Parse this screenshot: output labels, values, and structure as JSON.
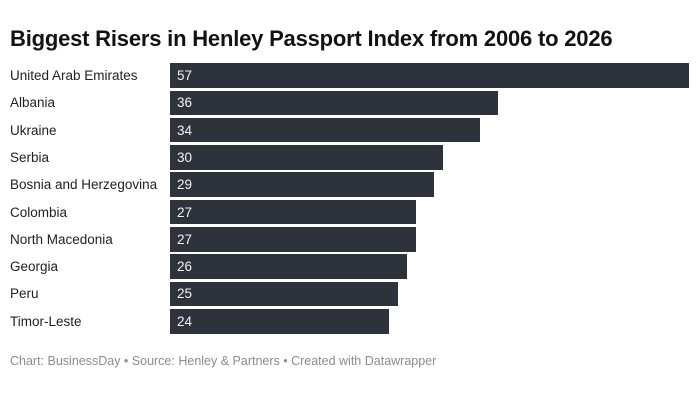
{
  "title": "Biggest Risers in Henley Passport Index from 2006 to 2026",
  "footer": {
    "credit": "Chart: BusinessDay • Source: Henley & Partners • Created with Datawrapper"
  },
  "colors": {
    "background": "#ffffff",
    "bar": "#2e333b",
    "title_text": "#121212",
    "category_label": "#1f1f1f",
    "value_label": "#f2f2f2",
    "footer_text": "#8c8c8c"
  },
  "chart_data": {
    "type": "bar",
    "orientation": "horizontal",
    "title": "Biggest Risers in Henley Passport Index from 2006 to 2026",
    "categories": [
      "United Arab Emirates",
      "Albania",
      "Ukraine",
      "Serbia",
      "Bosnia and Herzegovina",
      "Colombia",
      "North Macedonia",
      "Georgia",
      "Peru",
      "Timor-Leste"
    ],
    "values": [
      57,
      36,
      34,
      30,
      29,
      27,
      27,
      26,
      25,
      24
    ],
    "xlabel": "",
    "ylabel": "",
    "xlim": [
      0,
      57
    ],
    "grid": false,
    "legend": false,
    "value_labels_inside_bars": true
  }
}
